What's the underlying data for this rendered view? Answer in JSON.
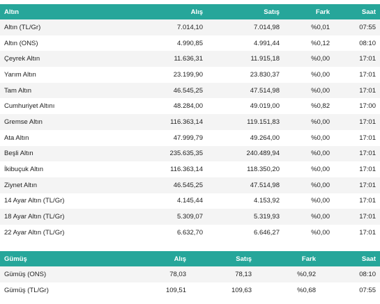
{
  "gold": {
    "headers": {
      "name": "Altın",
      "buy": "Alış",
      "sell": "Satış",
      "change": "Fark",
      "time": "Saat"
    },
    "rows": [
      {
        "name": "Altın (TL/Gr)",
        "buy": "7.014,10",
        "sell": "7.014,98",
        "change": "%0,01",
        "time": "07:55"
      },
      {
        "name": "Altın (ONS)",
        "buy": "4.990,85",
        "sell": "4.991,44",
        "change": "%0,12",
        "time": "08:10"
      },
      {
        "name": "Çeyrek Altın",
        "buy": "11.636,31",
        "sell": "11.915,18",
        "change": "%0,00",
        "time": "17:01"
      },
      {
        "name": "Yarım Altın",
        "buy": "23.199,90",
        "sell": "23.830,37",
        "change": "%0,00",
        "time": "17:01"
      },
      {
        "name": "Tam Altın",
        "buy": "46.545,25",
        "sell": "47.514,98",
        "change": "%0,00",
        "time": "17:01"
      },
      {
        "name": "Cumhuriyet Altını",
        "buy": "48.284,00",
        "sell": "49.019,00",
        "change": "%0,82",
        "time": "17:00"
      },
      {
        "name": "Gremse Altın",
        "buy": "116.363,14",
        "sell": "119.151,83",
        "change": "%0,00",
        "time": "17:01"
      },
      {
        "name": "Ata Altın",
        "buy": "47.999,79",
        "sell": "49.264,00",
        "change": "%0,00",
        "time": "17:01"
      },
      {
        "name": "Beşli Altın",
        "buy": "235.635,35",
        "sell": "240.489,94",
        "change": "%0,00",
        "time": "17:01"
      },
      {
        "name": "İkibuçuk Altın",
        "buy": "116.363,14",
        "sell": "118.350,20",
        "change": "%0,00",
        "time": "17:01"
      },
      {
        "name": "Ziynet Altın",
        "buy": "46.545,25",
        "sell": "47.514,98",
        "change": "%0,00",
        "time": "17:01"
      },
      {
        "name": "14 Ayar Altın (TL/Gr)",
        "buy": "4.145,44",
        "sell": "4.153,92",
        "change": "%0,00",
        "time": "17:01"
      },
      {
        "name": "18 Ayar Altın (TL/Gr)",
        "buy": "5.309,07",
        "sell": "5.319,93",
        "change": "%0,00",
        "time": "17:01"
      },
      {
        "name": "22 Ayar Altın (TL/Gr)",
        "buy": "6.632,70",
        "sell": "6.646,27",
        "change": "%0,00",
        "time": "17:01"
      }
    ]
  },
  "silver": {
    "headers": {
      "name": "Gümüş",
      "buy": "Alış",
      "sell": "Satış",
      "change": "Fark",
      "time": "Saat"
    },
    "rows": [
      {
        "name": "Gümüş (ONS)",
        "buy": "78,03",
        "sell": "78,13",
        "change": "%0,92",
        "time": "08:10"
      },
      {
        "name": "Gümüş (TL/Gr)",
        "buy": "109,51",
        "sell": "109,63",
        "change": "%0,68",
        "time": "07:55"
      }
    ]
  },
  "colors": {
    "header_bg": "#26a69a",
    "header_text": "#ffffff",
    "row_alt": "#f4f4f4"
  }
}
